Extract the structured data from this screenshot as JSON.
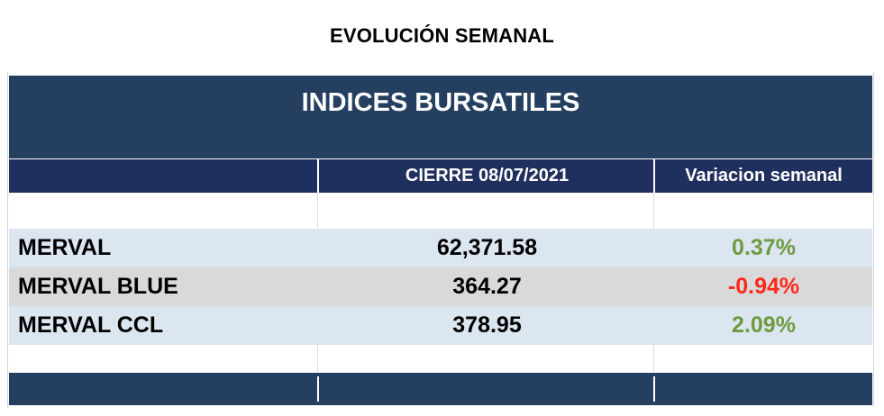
{
  "page_title": "EVOLUCIÓN SEMANAL",
  "table": {
    "title": "INDICES BURSATILES",
    "headers": {
      "name": "",
      "close": "CIERRE 08/07/2021",
      "variation": "Variacion semanal"
    },
    "rows": [
      {
        "name": "MERVAL",
        "close": "62,371.58",
        "variation": "0.37%",
        "variation_color": "#6e9b3f",
        "row_bg": "#dce6f1"
      },
      {
        "name": "MERVAL BLUE",
        "close": "364.27",
        "variation": "-0.94%",
        "variation_color": "#ff2a1a",
        "row_bg": "#d9d9d9"
      },
      {
        "name": "MERVAL CCL",
        "close": "378.95",
        "variation": "2.09%",
        "variation_color": "#6e9b3f",
        "row_bg": "#dce6f1"
      }
    ]
  },
  "colors": {
    "banner": "#243f60",
    "header": "#1f2f5e",
    "positive": "#6e9b3f",
    "negative": "#ff2a1a"
  }
}
